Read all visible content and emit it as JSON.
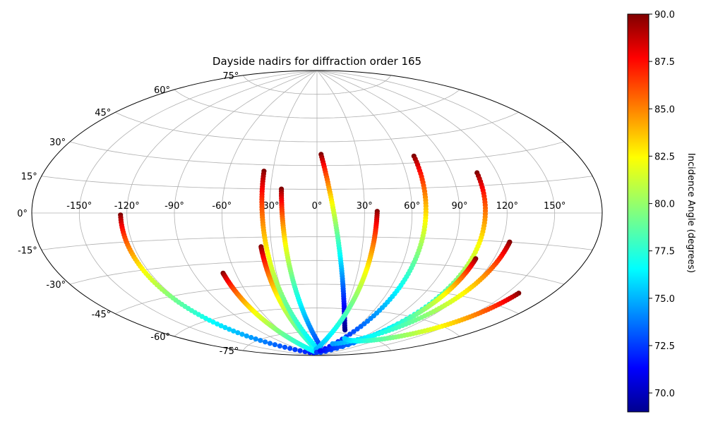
{
  "chart_data": {
    "type": "scatter",
    "projection": "aitoff",
    "title": "Dayside nadirs for diffraction order 165",
    "xlabel": "",
    "ylabel": "",
    "lon_ticks": [
      -150,
      -120,
      -90,
      -60,
      -30,
      0,
      30,
      60,
      90,
      120,
      150
    ],
    "lon_tick_labels": [
      "-150°",
      "-120°",
      "-90°",
      "-60°",
      "-30°",
      "0°",
      "30°",
      "60°",
      "90°",
      "120°",
      "150°"
    ],
    "lat_ticks": [
      75,
      60,
      45,
      30,
      15,
      0,
      -15,
      -30,
      -45,
      -60,
      -75
    ],
    "lat_tick_labels": [
      "75°",
      "60°",
      "45°",
      "30°",
      "15°",
      "0°",
      "-15°",
      "-30°",
      "-45°",
      "-60°",
      "-75°"
    ],
    "grid": true,
    "colorbar": {
      "label": "Incidence Angle (degrees)",
      "colormap": "jet",
      "range": [
        69,
        90
      ],
      "ticks": [
        70.0,
        72.5,
        75.0,
        77.5,
        80.0,
        82.5,
        85.0,
        87.5,
        90.0
      ],
      "tick_labels": [
        "70.0",
        "72.5",
        "75.0",
        "77.5",
        "80.0",
        "82.5",
        "85.0",
        "87.5",
        "90.0"
      ]
    },
    "series": [
      {
        "start": [
          -124,
          -1
        ],
        "end": [
          -5,
          -88
        ],
        "color_start": 90,
        "color_end": 71.5
      },
      {
        "start": [
          -69,
          -36
        ],
        "end": [
          2,
          -88
        ],
        "color_start": 90,
        "color_end": 76
      },
      {
        "start": [
          -37,
          -21
        ],
        "end": [
          8,
          -87
        ],
        "color_start": 90,
        "color_end": 76.5
      },
      {
        "start": [
          -36,
          26
        ],
        "end": [
          0,
          -85
        ],
        "color_start": 90,
        "color_end": 76
      },
      {
        "start": [
          -23,
          15
        ],
        "end": [
          15,
          -84
        ],
        "color_start": 90,
        "color_end": 72.5
      },
      {
        "start": [
          3,
          37
        ],
        "end": [
          46,
          -73
        ],
        "color_start": 90,
        "color_end": 69
      },
      {
        "start": [
          38,
          1
        ],
        "end": [
          -5,
          -86
        ],
        "color_start": 90,
        "color_end": 75
      },
      {
        "start": [
          70,
          34
        ],
        "end": [
          -2,
          -88
        ],
        "color_start": 90,
        "color_end": 71
      },
      {
        "start": [
          107,
          22
        ],
        "end": [
          -5,
          -88
        ],
        "color_start": 90,
        "color_end": 72.5
      },
      {
        "start": [
          108,
          -25
        ],
        "end": [
          25,
          -87
        ],
        "color_start": 90,
        "color_end": 71.5
      },
      {
        "start": [
          125,
          -15
        ],
        "end": [
          50,
          -82
        ],
        "color_start": 90,
        "color_end": 74.5
      },
      {
        "start": [
          158,
          -38
        ],
        "end": [
          62,
          -78
        ],
        "color_start": 90,
        "color_end": 75.5
      }
    ]
  }
}
